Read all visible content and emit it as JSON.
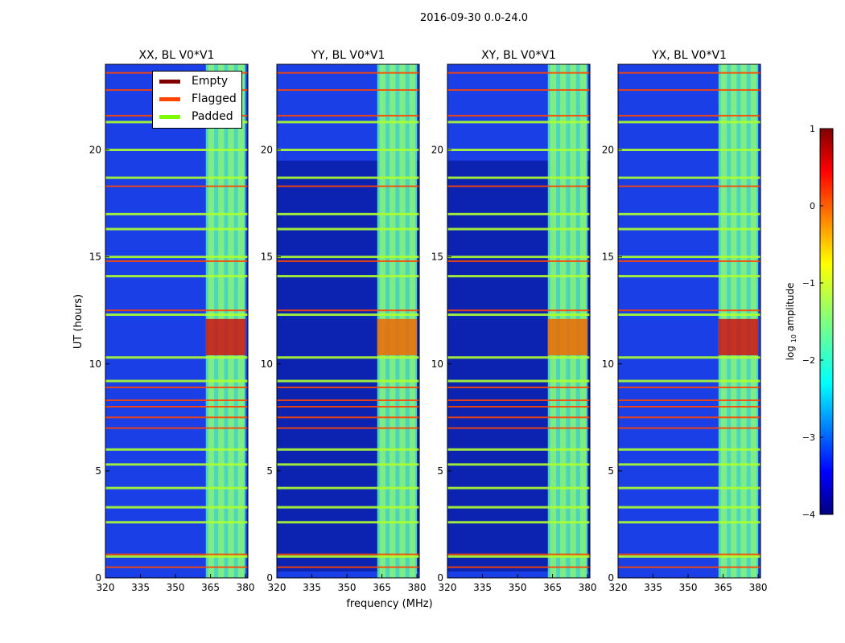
{
  "chart_data": {
    "type": "heatmap",
    "suptitle": "2016-09-30 0.0-24.0",
    "xlabel": "frequency (MHz)",
    "ylabel": "UT (hours)",
    "xlim": [
      320,
      381
    ],
    "ylim": [
      0,
      24
    ],
    "xticks": [
      320,
      335,
      350,
      365,
      380
    ],
    "yticks": [
      0,
      5,
      10,
      15,
      20
    ],
    "rfi_band_mhz": [
      363,
      380
    ],
    "panels": [
      {
        "title": "XX, BL V0*V1",
        "pol": "XX"
      },
      {
        "title": "YY, BL V0*V1",
        "pol": "YY"
      },
      {
        "title": "XY, BL V0*V1",
        "pol": "XY"
      },
      {
        "title": "YX, BL V0*V1",
        "pol": "YX"
      }
    ],
    "legend": {
      "location": "upper-right of first panel",
      "entries": [
        {
          "label": "Empty",
          "color": "#800000"
        },
        {
          "label": "Flagged",
          "color": "#ff4500"
        },
        {
          "label": "Padded",
          "color": "#7cfc00"
        }
      ]
    },
    "colorbar": {
      "label_prefix": "log",
      "label_sub": "10",
      "label_suffix": " amplitude",
      "min": -4,
      "max": 1,
      "ticks": [
        1,
        0,
        -1,
        -2,
        -3,
        -4
      ],
      "tick_labels": [
        "1",
        "0",
        "−1",
        "−2",
        "−3",
        "−4"
      ],
      "colormap": "jet"
    },
    "flag_rows_hours": [
      {
        "t": 0.5,
        "kind": "flagged"
      },
      {
        "t": 1.0,
        "kind": "padded"
      },
      {
        "t": 1.1,
        "kind": "flagged"
      },
      {
        "t": 2.6,
        "kind": "padded"
      },
      {
        "t": 3.3,
        "kind": "padded"
      },
      {
        "t": 4.2,
        "kind": "padded"
      },
      {
        "t": 5.3,
        "kind": "padded"
      },
      {
        "t": 6.0,
        "kind": "padded"
      },
      {
        "t": 7.0,
        "kind": "flagged"
      },
      {
        "t": 7.5,
        "kind": "flagged"
      },
      {
        "t": 8.0,
        "kind": "flagged"
      },
      {
        "t": 8.3,
        "kind": "flagged"
      },
      {
        "t": 8.9,
        "kind": "flagged"
      },
      {
        "t": 9.2,
        "kind": "padded"
      },
      {
        "t": 10.3,
        "kind": "padded"
      },
      {
        "t": 12.3,
        "kind": "padded"
      },
      {
        "t": 12.5,
        "kind": "flagged"
      },
      {
        "t": 14.1,
        "kind": "padded"
      },
      {
        "t": 14.8,
        "kind": "flagged"
      },
      {
        "t": 15.0,
        "kind": "padded"
      },
      {
        "t": 16.3,
        "kind": "padded"
      },
      {
        "t": 17.0,
        "kind": "padded"
      },
      {
        "t": 18.3,
        "kind": "flagged"
      },
      {
        "t": 18.7,
        "kind": "padded"
      },
      {
        "t": 20.0,
        "kind": "padded"
      },
      {
        "t": 21.3,
        "kind": "padded"
      },
      {
        "t": 21.6,
        "kind": "flagged"
      },
      {
        "t": 22.8,
        "kind": "flagged"
      },
      {
        "t": 23.6,
        "kind": "flagged"
      }
    ]
  }
}
